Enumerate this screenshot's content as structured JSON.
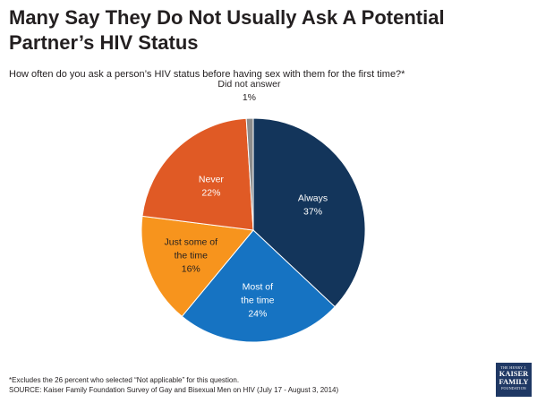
{
  "title": "Many Say They Do Not Usually Ask A Potential Partner’s HIV Status",
  "subtitle": "How often do you ask a person’s HIV status before having sex with them for the first time?*",
  "footnote": {
    "line1": "*Excludes the 26 percent who selected “Not applicable” for this question.",
    "line2": "SOURCE: Kaiser Family Foundation Survey of Gay and Bisexual Men on HIV (July 17 - August 3, 2014)"
  },
  "logo": {
    "line1": "THE HENRY J.",
    "line2a": "KAISER",
    "line2b": "FAMILY",
    "line3": "FOUNDATION"
  },
  "chart_data": {
    "type": "pie",
    "title": "How often do you ask a person’s HIV status before having sex with them for the first time?*",
    "slices": [
      {
        "label": "Always",
        "value": 37,
        "display": "37%",
        "color": "#13355b",
        "text_color": "#ffffff"
      },
      {
        "label": "Most of the time",
        "value": 24,
        "display": "24%",
        "color": "#1673c2",
        "text_color": "#ffffff"
      },
      {
        "label": "Just some of the time",
        "value": 16,
        "display": "16%",
        "color": "#f7941d",
        "text_color": "#231f20"
      },
      {
        "label": "Never",
        "value": 22,
        "display": "22%",
        "color": "#e05a25",
        "text_color": "#ffffff"
      },
      {
        "label": "Did not answer",
        "value": 1,
        "display": "1%",
        "color": "#8c8c8c",
        "text_color": "#231f20"
      }
    ],
    "legend": "none",
    "start": "12 o'clock, clockwise"
  }
}
